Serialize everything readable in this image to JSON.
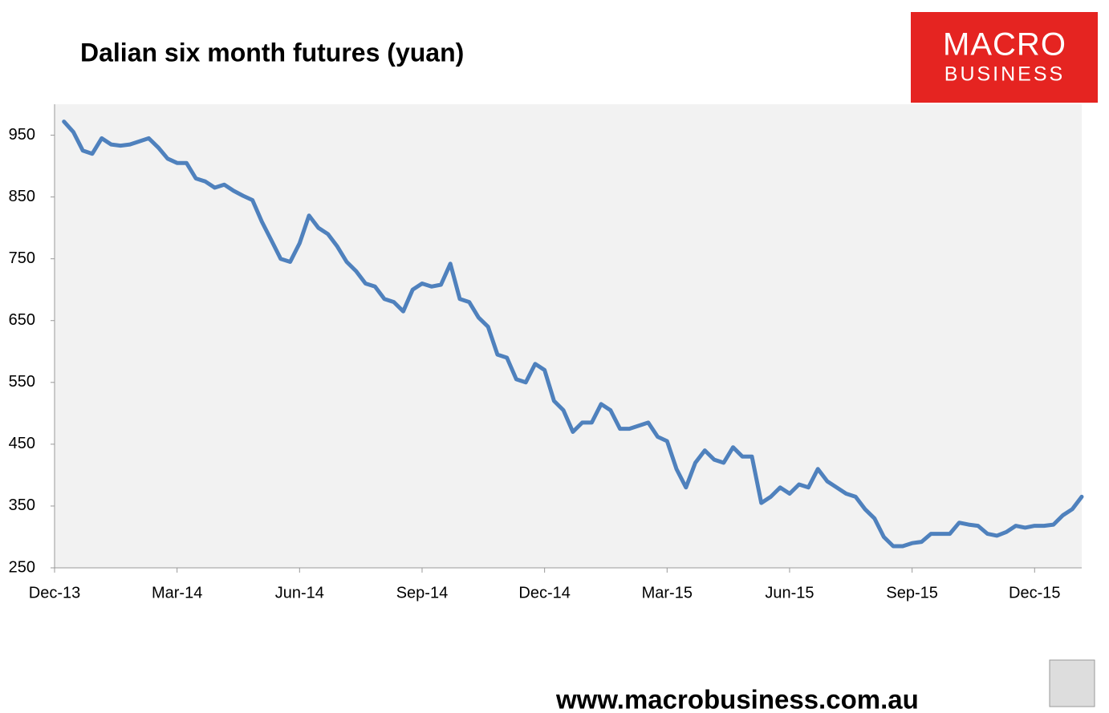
{
  "chart_data": {
    "type": "line",
    "title": "Dalian six month futures (yuan)",
    "categories": [
      "Dec-13",
      null,
      null,
      null,
      null,
      null,
      null,
      null,
      null,
      null,
      null,
      null,
      null,
      "Mar-14",
      null,
      null,
      null,
      null,
      null,
      null,
      null,
      null,
      null,
      null,
      null,
      null,
      "Jun-14",
      null,
      null,
      null,
      null,
      null,
      null,
      null,
      null,
      null,
      null,
      null,
      null,
      "Sep-14",
      null,
      null,
      null,
      null,
      null,
      null,
      null,
      null,
      null,
      null,
      null,
      null,
      "Dec-14",
      null,
      null,
      null,
      null,
      null,
      null,
      null,
      null,
      null,
      null,
      null,
      null,
      "Mar-15",
      null,
      null,
      null,
      null,
      null,
      null,
      null,
      null,
      null,
      null,
      null,
      null,
      "Jun-15",
      null,
      null,
      null,
      null,
      null,
      null,
      null,
      null,
      null,
      null,
      null,
      null,
      "Sep-15",
      null,
      null,
      null,
      null,
      null,
      null,
      null,
      null,
      null,
      null,
      null,
      null,
      "Dec-15",
      null,
      null,
      null,
      null,
      null
    ],
    "values": [
      null,
      972,
      955,
      925,
      920,
      945,
      935,
      933,
      935,
      940,
      945,
      930,
      912,
      905,
      905,
      880,
      875,
      865,
      870,
      860,
      852,
      845,
      810,
      780,
      750,
      745,
      775,
      820,
      800,
      790,
      770,
      745,
      730,
      710,
      705,
      685,
      680,
      665,
      700,
      710,
      705,
      708,
      742,
      685,
      680,
      655,
      640,
      595,
      590,
      555,
      550,
      580,
      570,
      520,
      505,
      470,
      485,
      485,
      515,
      505,
      475,
      475,
      480,
      485,
      462,
      455,
      410,
      380,
      420,
      440,
      425,
      420,
      445,
      430,
      430,
      355,
      365,
      380,
      370,
      385,
      380,
      410,
      390,
      380,
      370,
      365,
      345,
      330,
      300,
      285,
      285,
      290,
      292,
      305,
      305,
      305,
      323,
      320,
      318,
      305,
      302,
      308,
      318,
      315,
      318,
      318,
      320,
      335,
      345,
      365
    ],
    "color": "#4f81bd",
    "ylim": [
      250,
      1000
    ],
    "yticks": [
      250,
      350,
      450,
      550,
      650,
      750,
      850,
      950
    ],
    "grid": false
  },
  "logo": {
    "line1": "MACRO",
    "line2": "BUSINESS"
  },
  "footer": "www.macrobusiness.com.au"
}
